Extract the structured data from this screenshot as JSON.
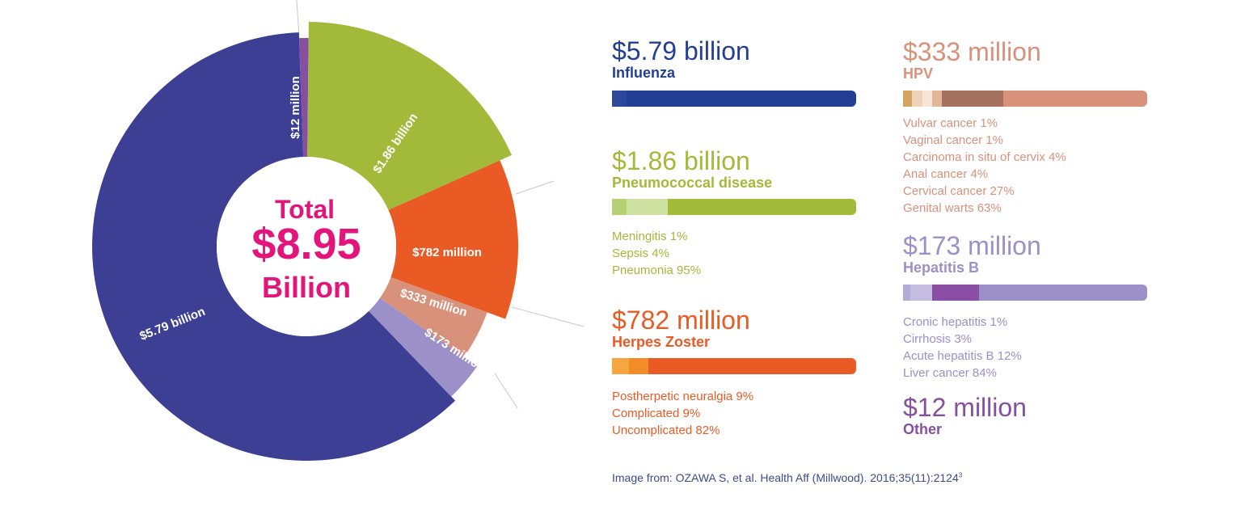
{
  "center": {
    "line1": "Total",
    "line2": "$8.95",
    "line3": "Billion"
  },
  "chart_data": {
    "type": "pie",
    "total": 8.95,
    "total_unit": "billion",
    "slices": [
      {
        "label": "$5.79 billion",
        "name": "Influenza",
        "value": 5.79,
        "color": "#3d3f94"
      },
      {
        "label": "$12 million",
        "name": "Other",
        "value": 0.012,
        "color": "#8650a0"
      },
      {
        "label": "$1.86 billion",
        "name": "Pneumococcal disease",
        "value": 1.86,
        "color": "#a3b939"
      },
      {
        "label": "$782 million",
        "name": "Herpes Zoster",
        "value": 0.782,
        "color": "#ea5a24"
      },
      {
        "label": "$333 million",
        "name": "HPV",
        "value": 0.333,
        "color": "#d8917a"
      },
      {
        "label": "$173 million",
        "name": "Hepatitis B",
        "value": 0.173,
        "color": "#9b90c7"
      }
    ]
  },
  "legend": {
    "influenza": {
      "amount": "$5.79 billion",
      "name": "Influenza",
      "color": "#233f94",
      "segments": [
        {
          "value": 6,
          "color": "#2c479c"
        },
        {
          "value": 94,
          "color": "#233f94"
        }
      ],
      "items": []
    },
    "pneumo": {
      "amount": "$1.86 billion",
      "name": "Pneumococcal disease",
      "color": "#a3b939",
      "segments": [
        {
          "value": 6,
          "color": "#b5cf73"
        },
        {
          "value": 17,
          "color": "#cfe2a2"
        },
        {
          "value": 77,
          "color": "#a3b939"
        }
      ],
      "items": [
        "Meningitis 1%",
        "Sepsis 4%",
        "Pneumonia 95%"
      ]
    },
    "zoster": {
      "amount": "$782 million",
      "name": "Herpes Zoster",
      "color": "#ea5a24",
      "segments": [
        {
          "value": 7,
          "color": "#f6a540"
        },
        {
          "value": 8,
          "color": "#f28c28"
        },
        {
          "value": 85,
          "color": "#ea5a24"
        }
      ],
      "items": [
        "Postherpetic neuralgia 9%",
        "Complicated 9%",
        "Uncomplicated 82%"
      ]
    },
    "hpv": {
      "amount": "$333 million",
      "name": "HPV",
      "color": "#d8917a",
      "segments": [
        {
          "value": 3.5,
          "color": "#d4a55f"
        },
        {
          "value": 4.5,
          "color": "#efd3b8"
        },
        {
          "value": 4,
          "color": "#f6e6d6"
        },
        {
          "value": 4,
          "color": "#e3b795"
        },
        {
          "value": 25,
          "color": "#a5705e"
        },
        {
          "value": 59,
          "color": "#d8917a"
        }
      ],
      "items": [
        "Vulvar cancer 1%",
        "Vaginal cancer 1%",
        "Carcinoma in situ of cervix 4%",
        "Anal cancer 4%",
        "Cervical cancer 27%",
        "Genital warts 63%"
      ]
    },
    "hepb": {
      "amount": "$173 million",
      "name": "Hepatitis B",
      "color": "#9b90c7",
      "segments": [
        {
          "value": 3,
          "color": "#b3acd6"
        },
        {
          "value": 9,
          "color": "#c4bde0"
        },
        {
          "value": 19,
          "color": "#8a4fa5"
        },
        {
          "value": 69,
          "color": "#9b90c7"
        }
      ],
      "items": [
        "Cronic hepatitis 1%",
        "Cirrhosis 3%",
        "Acute hepatitis B 12%",
        "Liver cancer 84%"
      ]
    },
    "other": {
      "amount": "$12 million",
      "name": "Other",
      "color": "#8650a0"
    }
  },
  "source": {
    "text": "Image from: OZAWA S, et al. Health Aff (Millwood). 2016;35(11):2124",
    "sup": "3"
  }
}
